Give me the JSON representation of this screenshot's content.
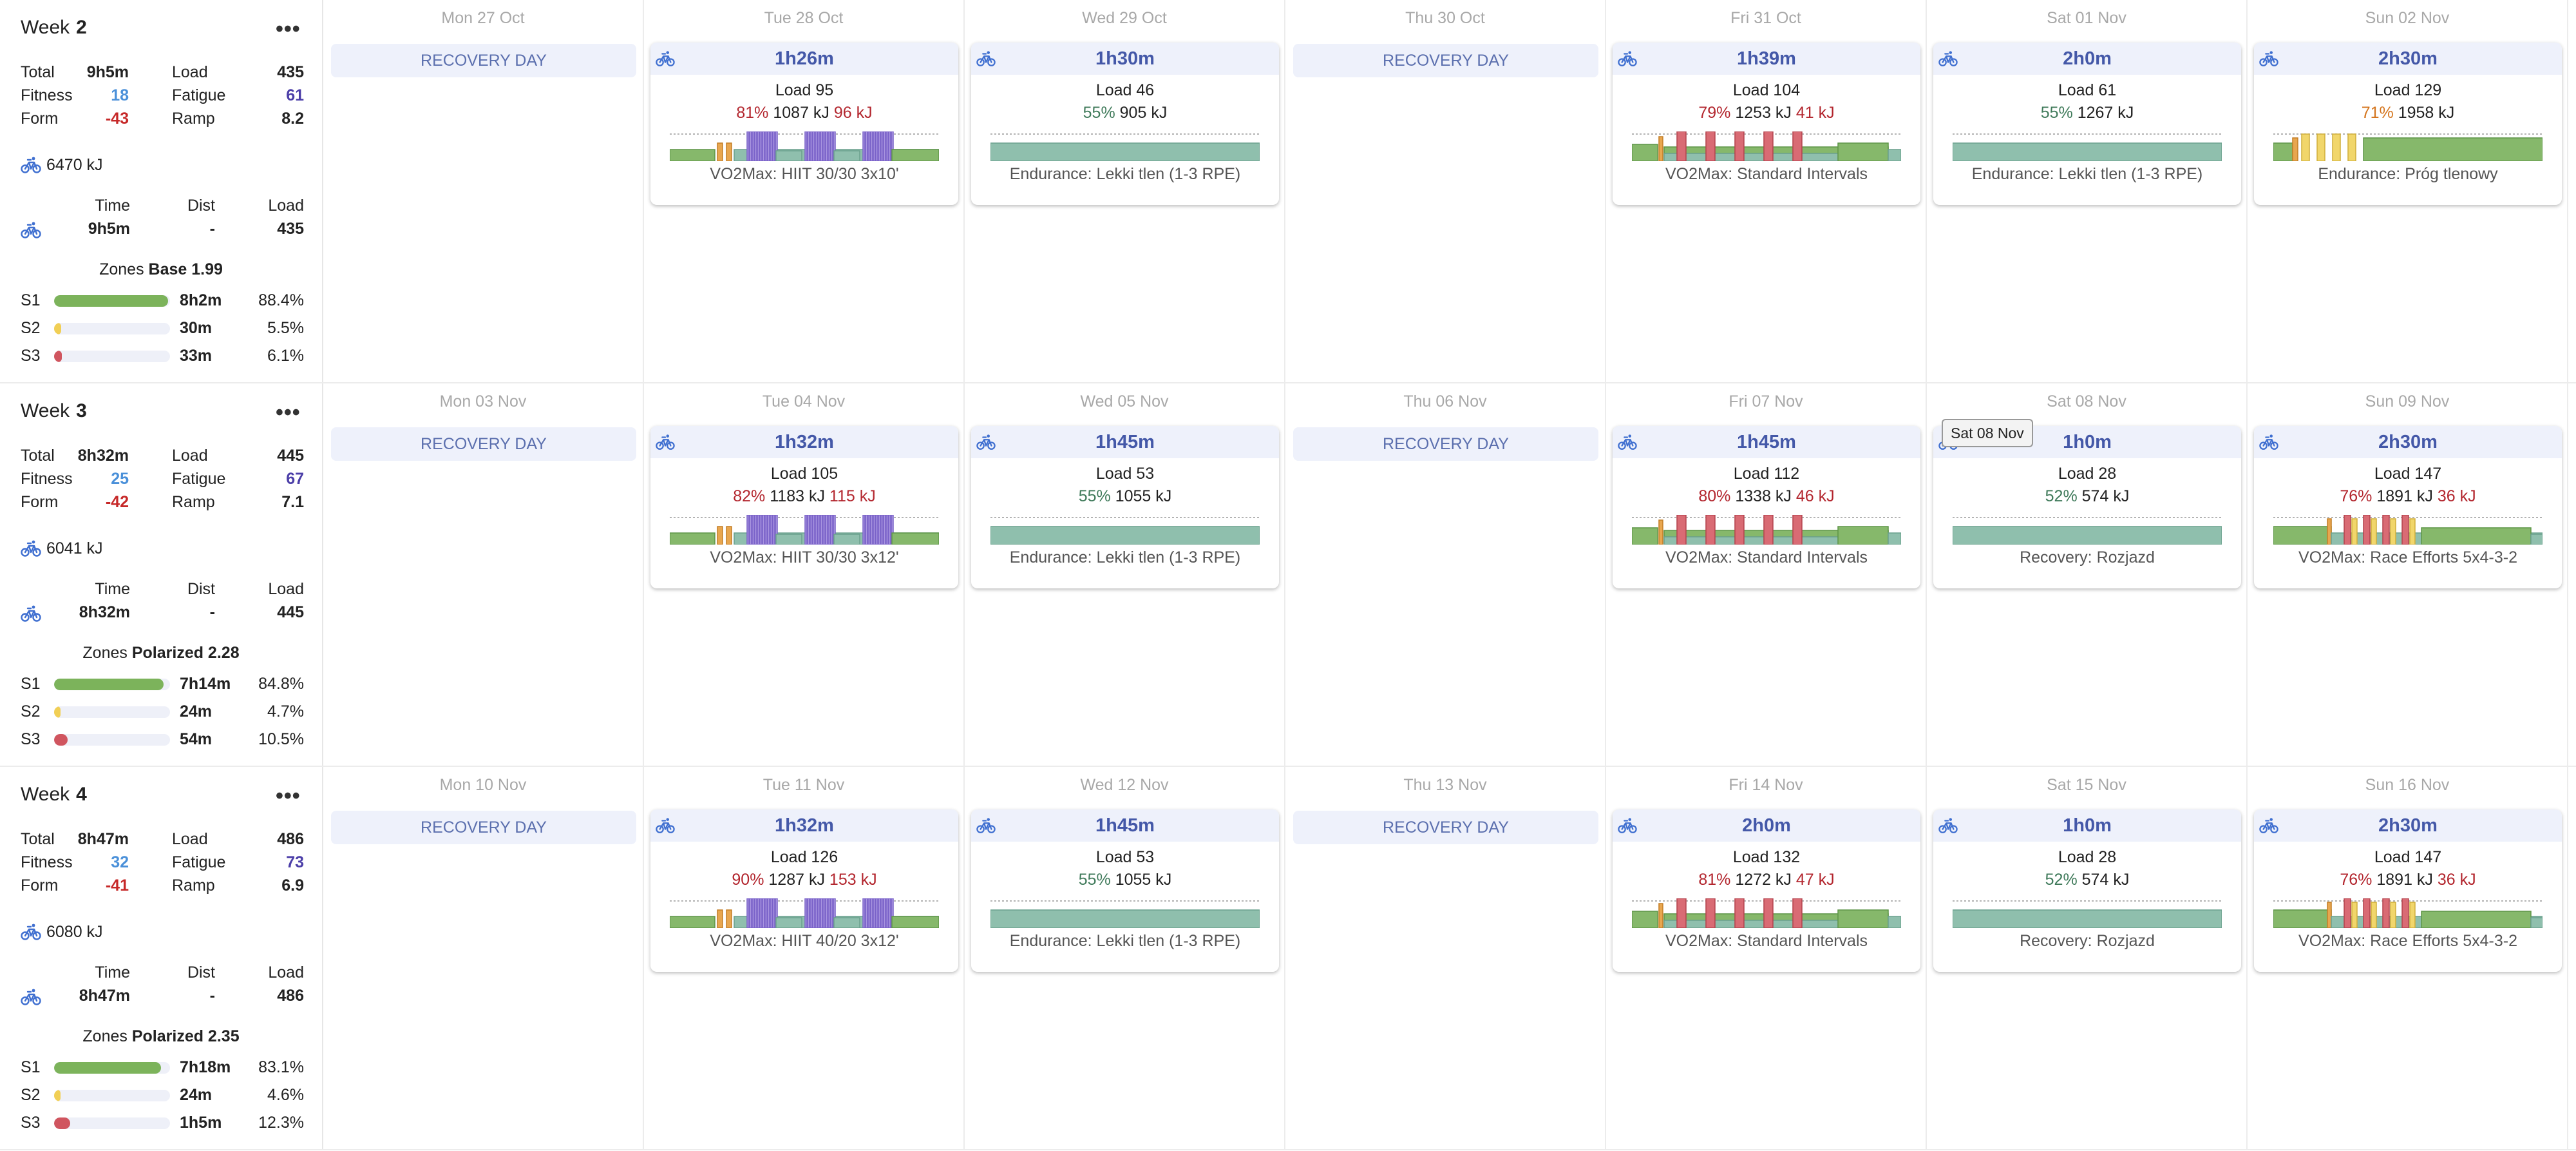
{
  "tooltip": "Sat 08 Nov",
  "weeks": [
    {
      "label": "Week",
      "number": "2",
      "summary": {
        "total_label": "Total",
        "total": "9h5m",
        "load_label": "Load",
        "load": "435",
        "fitness_label": "Fitness",
        "fitness": "18",
        "fatigue_label": "Fatigue",
        "fatigue": "61",
        "form_label": "Form",
        "form": "-43",
        "ramp_label": "Ramp",
        "ramp": "8.2",
        "kj": "6470 kJ",
        "time_label": "Time",
        "dist_label": "Dist",
        "tload_label": "Load",
        "time": "9h5m",
        "dist": "-",
        "tload": "435",
        "zones_label": "Zones",
        "zones_type": "Base 1.99",
        "zones": [
          {
            "name": "S1",
            "time": "8h2m",
            "pct": "88.4%",
            "frac": 0.884,
            "color": "#7cb35b"
          },
          {
            "name": "S2",
            "time": "30m",
            "pct": "5.5%",
            "frac": 0.055,
            "color": "#f1cf55"
          },
          {
            "name": "S3",
            "time": "33m",
            "pct": "6.1%",
            "frac": 0.061,
            "color": "#d0555f"
          }
        ]
      },
      "days": [
        {
          "date": "Mon 27 Oct",
          "type": "recovery",
          "text": "RECOVERY DAY"
        },
        {
          "date": "Tue 28 Oct",
          "type": "workout",
          "duration": "1h26m",
          "load": "Load 95",
          "pct": "81%",
          "pct_class": "red",
          "kj": "1087 kJ",
          "kj_extra": "96 kJ",
          "name": "VO2Max: HIIT 30/30 3x10'",
          "chart": "hiit"
        },
        {
          "date": "Wed 29 Oct",
          "type": "workout",
          "duration": "1h30m",
          "load": "Load 46",
          "pct": "55%",
          "pct_class": "green",
          "kj": "905 kJ",
          "kj_extra": "",
          "name": "Endurance: Lekki tlen (1-3 RPE)",
          "chart": "flat"
        },
        {
          "date": "Thu 30 Oct",
          "type": "recovery",
          "text": "RECOVERY DAY"
        },
        {
          "date": "Fri 31 Oct",
          "type": "workout",
          "duration": "1h39m",
          "load": "Load 104",
          "pct": "79%",
          "pct_class": "red",
          "kj": "1253 kJ",
          "kj_extra": "41 kJ",
          "name": "VO2Max: Standard Intervals",
          "chart": "intervals"
        },
        {
          "date": "Sat 01 Nov",
          "type": "workout",
          "duration": "2h0m",
          "load": "Load 61",
          "pct": "55%",
          "pct_class": "green",
          "kj": "1267 kJ",
          "kj_extra": "",
          "name": "Endurance: Lekki tlen (1-3 RPE)",
          "chart": "flat"
        },
        {
          "date": "Sun 02 Nov",
          "type": "workout",
          "duration": "2h30m",
          "load": "Load 129",
          "pct": "71%",
          "pct_class": "orange",
          "kj": "1958 kJ",
          "kj_extra": "",
          "name": "Endurance: Próg tlenowy",
          "chart": "tempo"
        }
      ]
    },
    {
      "label": "Week",
      "number": "3",
      "summary": {
        "total_label": "Total",
        "total": "8h32m",
        "load_label": "Load",
        "load": "445",
        "fitness_label": "Fitness",
        "fitness": "25",
        "fatigue_label": "Fatigue",
        "fatigue": "67",
        "form_label": "Form",
        "form": "-42",
        "ramp_label": "Ramp",
        "ramp": "7.1",
        "kj": "6041 kJ",
        "time_label": "Time",
        "dist_label": "Dist",
        "tload_label": "Load",
        "time": "8h32m",
        "dist": "-",
        "tload": "445",
        "zones_label": "Zones",
        "zones_type": "Polarized 2.28",
        "zones": [
          {
            "name": "S1",
            "time": "7h14m",
            "pct": "84.8%",
            "frac": 0.848,
            "color": "#7cb35b"
          },
          {
            "name": "S2",
            "time": "24m",
            "pct": "4.7%",
            "frac": 0.047,
            "color": "#f1cf55"
          },
          {
            "name": "S3",
            "time": "54m",
            "pct": "10.5%",
            "frac": 0.105,
            "color": "#d0555f"
          }
        ]
      },
      "days": [
        {
          "date": "Mon 03 Nov",
          "type": "recovery",
          "text": "RECOVERY DAY"
        },
        {
          "date": "Tue 04 Nov",
          "type": "workout",
          "duration": "1h32m",
          "load": "Load 105",
          "pct": "82%",
          "pct_class": "red",
          "kj": "1183 kJ",
          "kj_extra": "115 kJ",
          "name": "VO2Max: HIIT 30/30 3x12'",
          "chart": "hiit"
        },
        {
          "date": "Wed 05 Nov",
          "type": "workout",
          "duration": "1h45m",
          "load": "Load 53",
          "pct": "55%",
          "pct_class": "green",
          "kj": "1055 kJ",
          "kj_extra": "",
          "name": "Endurance: Lekki tlen (1-3 RPE)",
          "chart": "flat"
        },
        {
          "date": "Thu 06 Nov",
          "type": "recovery",
          "text": "RECOVERY DAY"
        },
        {
          "date": "Fri 07 Nov",
          "type": "workout",
          "duration": "1h45m",
          "load": "Load 112",
          "pct": "80%",
          "pct_class": "red",
          "kj": "1338 kJ",
          "kj_extra": "46 kJ",
          "name": "VO2Max: Standard Intervals",
          "chart": "intervals"
        },
        {
          "date": "Sat 08 Nov",
          "type": "workout",
          "duration": "1h0m",
          "load": "Load 28",
          "pct": "52%",
          "pct_class": "green",
          "kj": "574 kJ",
          "kj_extra": "",
          "name": "Recovery: Rozjazd",
          "chart": "flat"
        },
        {
          "date": "Sun 09 Nov",
          "type": "workout",
          "duration": "2h30m",
          "load": "Load 147",
          "pct": "76%",
          "pct_class": "red",
          "kj": "1891 kJ",
          "kj_extra": "36 kJ",
          "name": "VO2Max: Race Efforts 5x4-3-2",
          "chart": "race"
        }
      ]
    },
    {
      "label": "Week",
      "number": "4",
      "summary": {
        "total_label": "Total",
        "total": "8h47m",
        "load_label": "Load",
        "load": "486",
        "fitness_label": "Fitness",
        "fitness": "32",
        "fatigue_label": "Fatigue",
        "fatigue": "73",
        "form_label": "Form",
        "form": "-41",
        "ramp_label": "Ramp",
        "ramp": "6.9",
        "kj": "6080 kJ",
        "time_label": "Time",
        "dist_label": "Dist",
        "tload_label": "Load",
        "time": "8h47m",
        "dist": "-",
        "tload": "486",
        "zones_label": "Zones",
        "zones_type": "Polarized 2.35",
        "zones": [
          {
            "name": "S1",
            "time": "7h18m",
            "pct": "83.1%",
            "frac": 0.831,
            "color": "#7cb35b"
          },
          {
            "name": "S2",
            "time": "24m",
            "pct": "4.6%",
            "frac": 0.046,
            "color": "#f1cf55"
          },
          {
            "name": "S3",
            "time": "1h5m",
            "pct": "12.3%",
            "frac": 0.123,
            "color": "#d0555f"
          }
        ]
      },
      "days": [
        {
          "date": "Mon 10 Nov",
          "type": "recovery",
          "text": "RECOVERY DAY"
        },
        {
          "date": "Tue 11 Nov",
          "type": "workout",
          "duration": "1h32m",
          "load": "Load 126",
          "pct": "90%",
          "pct_class": "red",
          "kj": "1287 kJ",
          "kj_extra": "153 kJ",
          "name": "VO2Max: HIIT 40/20 3x12'",
          "chart": "hiit"
        },
        {
          "date": "Wed 12 Nov",
          "type": "workout",
          "duration": "1h45m",
          "load": "Load 53",
          "pct": "55%",
          "pct_class": "green",
          "kj": "1055 kJ",
          "kj_extra": "",
          "name": "Endurance: Lekki tlen (1-3 RPE)",
          "chart": "flat"
        },
        {
          "date": "Thu 13 Nov",
          "type": "recovery",
          "text": "RECOVERY DAY"
        },
        {
          "date": "Fri 14 Nov",
          "type": "workout",
          "duration": "2h0m",
          "load": "Load 132",
          "pct": "81%",
          "pct_class": "red",
          "kj": "1272 kJ",
          "kj_extra": "47 kJ",
          "name": "VO2Max: Standard Intervals",
          "chart": "intervals"
        },
        {
          "date": "Sat 15 Nov",
          "type": "workout",
          "duration": "1h0m",
          "load": "Load 28",
          "pct": "52%",
          "pct_class": "green",
          "kj": "574 kJ",
          "kj_extra": "",
          "name": "Recovery: Rozjazd",
          "chart": "flat"
        },
        {
          "date": "Sun 16 Nov",
          "type": "workout",
          "duration": "2h30m",
          "load": "Load 147",
          "pct": "76%",
          "pct_class": "red",
          "kj": "1891 kJ",
          "kj_extra": "36 kJ",
          "name": "VO2Max: Race Efforts 5x4-3-2",
          "chart": "race"
        }
      ]
    }
  ]
}
